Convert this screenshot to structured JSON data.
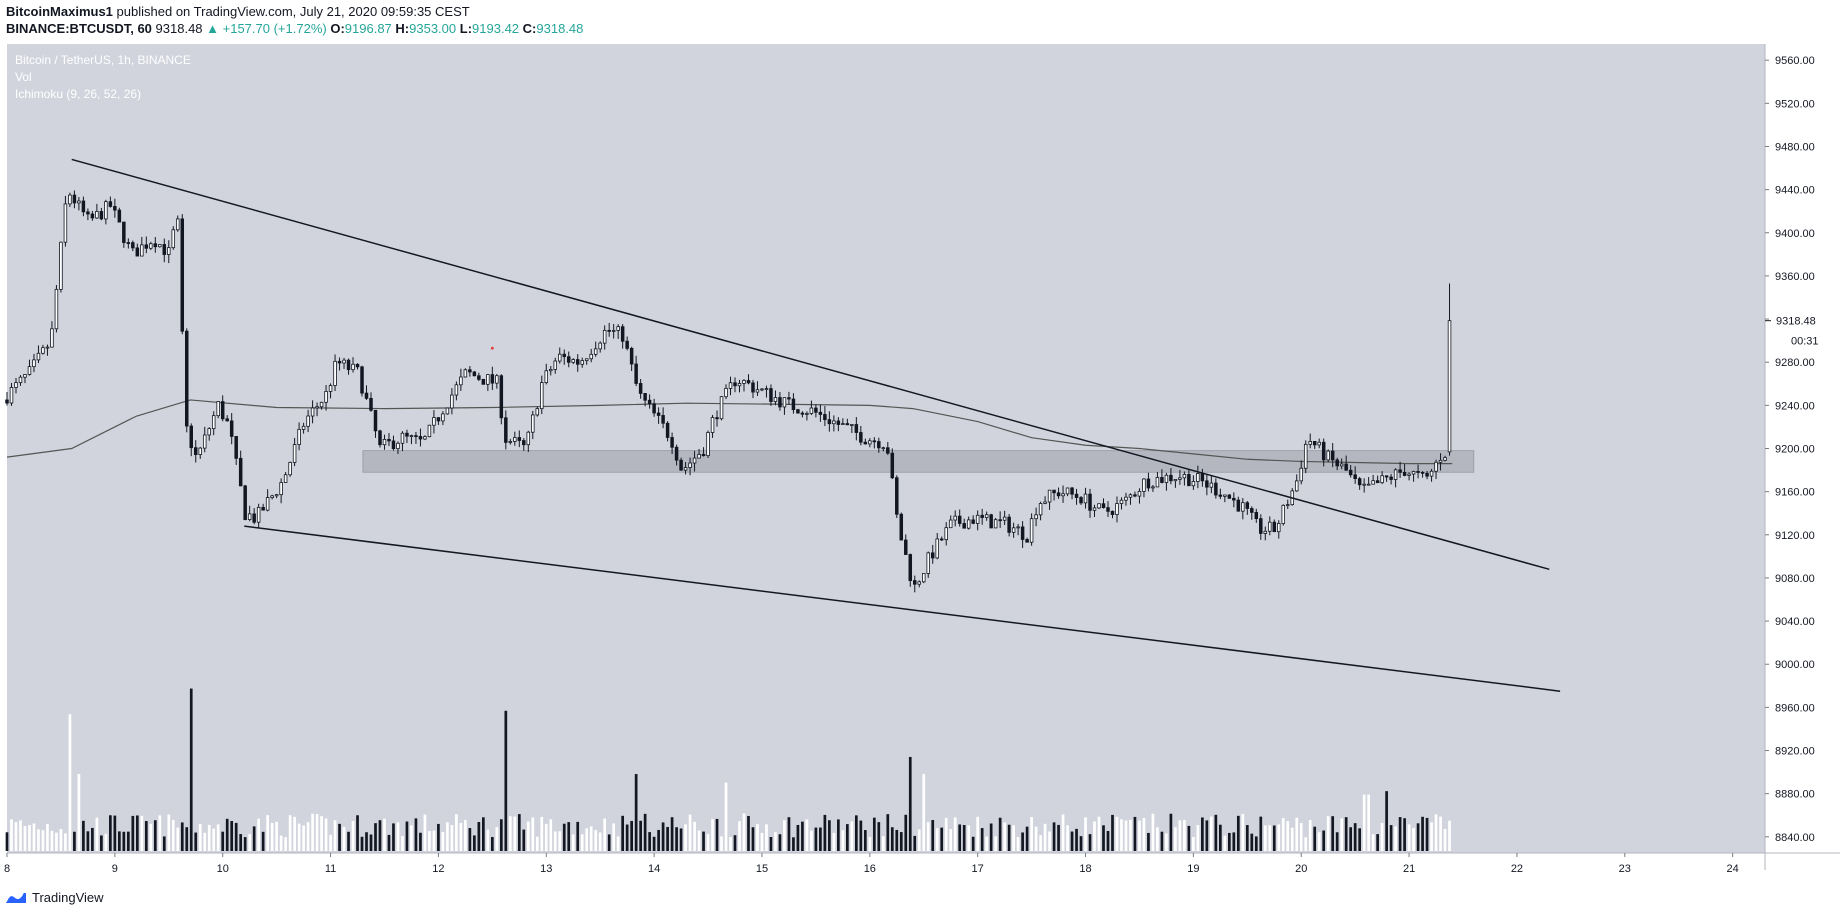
{
  "header": {
    "author": "BitcoinMaximus1",
    "published": "published on TradingView.com, July 21, 2020 09:59:35 CEST",
    "symbol": "BINANCE:BTCUSDT, 60",
    "last": "9318.48",
    "change": "▲ +157.70 (+1.72%)",
    "o_label": "O:",
    "o_value": "9196.87",
    "h_label": "H:",
    "h_value": "9353.00",
    "l_label": "L:",
    "l_value": "9193.42",
    "c_label": "C:",
    "c_value": "9318.48"
  },
  "legend": {
    "pair": "Bitcoin / TetherUS, 1h, BINANCE",
    "vol": "Vol",
    "ichimoku": "Ichimoku (9, 26, 52, 26)"
  },
  "price_tag": {
    "price": "9318.48",
    "countdown": "00:31"
  },
  "footer": {
    "brand": "TradingView"
  },
  "colors": {
    "chart_bg": "#d1d4dc",
    "candle": "#131722",
    "volume_up": "#ffffff",
    "volume_down": "#131722",
    "zone": "#a9adb7",
    "ma_line": "#555555",
    "tag_bg": "#ffffff"
  },
  "chart_data": {
    "type": "candlestick",
    "title": "Bitcoin / TetherUS, 1h, BINANCE",
    "x_ticks": [
      "8",
      "9",
      "10",
      "11",
      "12",
      "13",
      "14",
      "15",
      "16",
      "17",
      "18",
      "19",
      "20",
      "21",
      "22",
      "23",
      "24"
    ],
    "y_ticks": [
      "8840.00",
      "8880.00",
      "8920.00",
      "8960.00",
      "9000.00",
      "9040.00",
      "9080.00",
      "9120.00",
      "9160.00",
      "9200.00",
      "9240.00",
      "9280.00",
      "9320.00",
      "9360.00",
      "9400.00",
      "9440.00",
      "9480.00",
      "9520.00",
      "9560.00"
    ],
    "ylim": [
      8825,
      9575
    ],
    "xlim": [
      8,
      24.3
    ],
    "candles_from": 8.0,
    "candles_to": 21.42,
    "path": [
      [
        8.0,
        9245
      ],
      [
        8.25,
        9270
      ],
      [
        8.45,
        9300
      ],
      [
        8.6,
        9440
      ],
      [
        8.8,
        9410
      ],
      [
        9.0,
        9425
      ],
      [
        9.2,
        9380
      ],
      [
        9.4,
        9395
      ],
      [
        9.55,
        9380
      ],
      [
        9.62,
        9420
      ],
      [
        9.7,
        9220
      ],
      [
        9.8,
        9190
      ],
      [
        10.0,
        9240
      ],
      [
        10.1,
        9220
      ],
      [
        10.25,
        9140
      ],
      [
        10.35,
        9135
      ],
      [
        10.6,
        9170
      ],
      [
        10.8,
        9225
      ],
      [
        11.0,
        9250
      ],
      [
        11.1,
        9280
      ],
      [
        11.3,
        9270
      ],
      [
        11.5,
        9200
      ],
      [
        11.7,
        9210
      ],
      [
        11.9,
        9205
      ],
      [
        12.1,
        9240
      ],
      [
        12.3,
        9270
      ],
      [
        12.6,
        9260
      ],
      [
        12.65,
        9210
      ],
      [
        12.85,
        9200
      ],
      [
        13.0,
        9260
      ],
      [
        13.15,
        9285
      ],
      [
        13.35,
        9280
      ],
      [
        13.6,
        9310
      ],
      [
        13.75,
        9305
      ],
      [
        13.9,
        9250
      ],
      [
        14.2,
        9210
      ],
      [
        14.3,
        9180
      ],
      [
        14.5,
        9200
      ],
      [
        14.6,
        9230
      ],
      [
        14.8,
        9265
      ],
      [
        15.0,
        9255
      ],
      [
        15.3,
        9240
      ],
      [
        15.5,
        9235
      ],
      [
        15.8,
        9220
      ],
      [
        16.0,
        9210
      ],
      [
        16.2,
        9205
      ],
      [
        16.3,
        9130
      ],
      [
        16.45,
        9070
      ],
      [
        16.6,
        9100
      ],
      [
        16.8,
        9130
      ],
      [
        17.0,
        9135
      ],
      [
        17.3,
        9130
      ],
      [
        17.5,
        9120
      ],
      [
        17.6,
        9150
      ],
      [
        17.8,
        9160
      ],
      [
        18.0,
        9155
      ],
      [
        18.2,
        9140
      ],
      [
        18.4,
        9150
      ],
      [
        18.6,
        9170
      ],
      [
        18.9,
        9175
      ],
      [
        19.1,
        9170
      ],
      [
        19.3,
        9160
      ],
      [
        19.5,
        9145
      ],
      [
        19.65,
        9125
      ],
      [
        19.8,
        9125
      ],
      [
        20.0,
        9170
      ],
      [
        20.1,
        9210
      ],
      [
        20.3,
        9190
      ],
      [
        20.45,
        9180
      ],
      [
        20.6,
        9160
      ],
      [
        20.8,
        9170
      ],
      [
        21.0,
        9180
      ],
      [
        21.2,
        9170
      ],
      [
        21.35,
        9196
      ]
    ],
    "last_candle": {
      "open": 9196.87,
      "high": 9353.0,
      "low": 9193.42,
      "close": 9318.48
    },
    "moving_average": [
      [
        8.0,
        9192
      ],
      [
        8.6,
        9200
      ],
      [
        9.2,
        9230
      ],
      [
        9.7,
        9245
      ],
      [
        10.5,
        9238
      ],
      [
        11.5,
        9237
      ],
      [
        12.5,
        9238
      ],
      [
        13.5,
        9240
      ],
      [
        14.3,
        9242
      ],
      [
        15.2,
        9241
      ],
      [
        16.0,
        9240
      ],
      [
        16.4,
        9237
      ],
      [
        17.0,
        9225
      ],
      [
        17.5,
        9210
      ],
      [
        18.0,
        9203
      ],
      [
        18.5,
        9200
      ],
      [
        19.0,
        9195
      ],
      [
        19.5,
        9190
      ],
      [
        20.0,
        9188
      ],
      [
        20.5,
        9187
      ],
      [
        21.0,
        9186
      ],
      [
        21.4,
        9186
      ]
    ],
    "resistance_zone": {
      "x": [
        11.3,
        21.6
      ],
      "y": [
        9178,
        9198
      ]
    },
    "trendlines": [
      {
        "x1": 8.6,
        "y1": 9468,
        "x2": 22.3,
        "y2": 9088
      },
      {
        "x1": 10.2,
        "y1": 9128,
        "x2": 22.4,
        "y2": 8975
      }
    ],
    "volume": {
      "max": 100,
      "spikes": [
        [
          8.6,
          80
        ],
        [
          8.68,
          45
        ],
        [
          9.7,
          95
        ],
        [
          12.64,
          82
        ],
        [
          13.85,
          45
        ],
        [
          14.65,
          40
        ],
        [
          16.37,
          55
        ],
        [
          16.5,
          45
        ],
        [
          20.6,
          33
        ],
        [
          20.8,
          35
        ],
        [
          21.42,
          90
        ]
      ]
    },
    "annotation_dot": {
      "x": 12.5,
      "y": 9293
    }
  }
}
